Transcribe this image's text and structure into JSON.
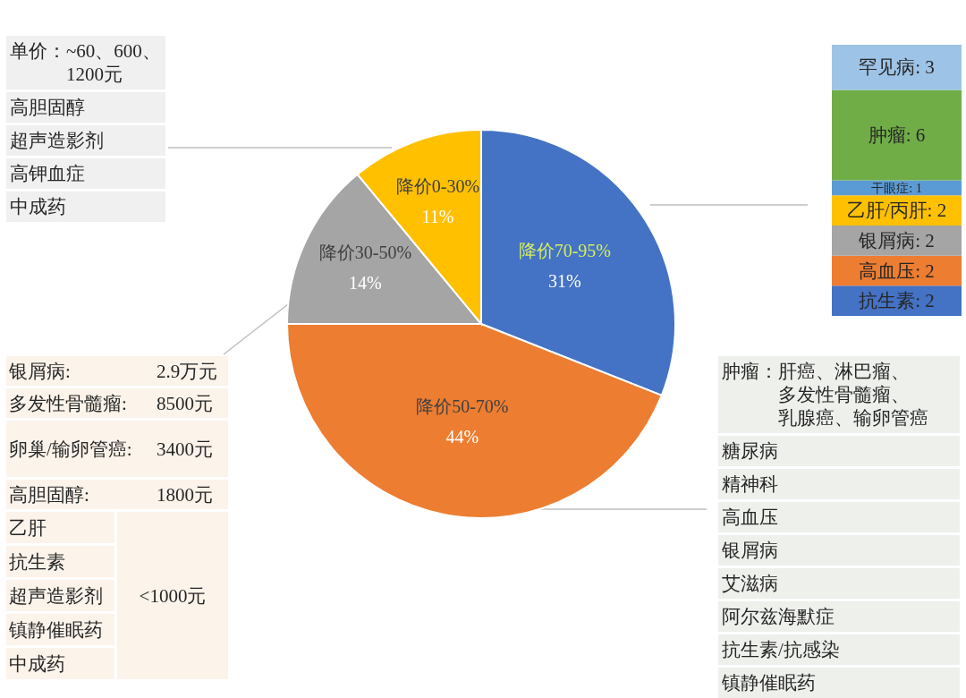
{
  "chart_data": [
    {
      "type": "pie",
      "categories": [
        "降价70-95%",
        "降价50-70%",
        "降价30-50%",
        "降价0-30%"
      ],
      "values": [
        31,
        44,
        14,
        11
      ],
      "colors": [
        "#4472c4",
        "#ed7d31",
        "#a5a5a5",
        "#ffc000"
      ],
      "value_labels": [
        "31%",
        "44%",
        "14%",
        "11%"
      ]
    },
    {
      "type": "bar",
      "stacked": true,
      "categories": [
        null
      ],
      "series": [
        {
          "color": "#4472c4",
          "values": [
            2
          ],
          "value_labels": [
            "抗生素: 2"
          ]
        },
        {
          "color": "#ed7d31",
          "values": [
            2
          ],
          "value_labels": [
            "高血压: 2"
          ]
        },
        {
          "color": "#a5a5a5",
          "values": [
            2
          ],
          "value_labels": [
            "银屑病: 2"
          ]
        },
        {
          "color": "#ffc000",
          "values": [
            2
          ],
          "value_labels": [
            "乙肝/丙肝: 2"
          ]
        },
        {
          "color": "#5b9bd5",
          "values": [
            1
          ],
          "value_labels": [
            "干眼症: 1"
          ]
        },
        {
          "color": "#70ad47",
          "values": [
            6
          ],
          "value_labels": [
            "肿瘤: 6"
          ]
        },
        {
          "color": "#9dc3e6",
          "values": [
            3
          ],
          "value_labels": [
            "罕见病: 3"
          ]
        }
      ]
    },
    {
      "type": "other",
      "annotations": [
        "单价：~60、600、1200元",
        "高胆固醇",
        "超声造影剂",
        "高钾血症",
        "中成药"
      ]
    },
    {
      "type": "other",
      "annotations": [
        "银屑病:",
        "2.9万元",
        "多发性骨髓瘤:",
        "8500元",
        "卵巢/输卵管癌:",
        "3400元",
        "高胆固醇:",
        "1800元",
        "乙肝",
        "抗生素",
        "超声造影剂",
        "镇静催眠药",
        "中成药",
        "<1000元"
      ]
    },
    {
      "type": "other",
      "annotations": [
        "肿瘤：肝癌、淋巴瘤、多发性骨髓瘤、乳腺癌、输卵管癌",
        "糖尿病",
        "精神科",
        "高血压",
        "银屑病",
        "艾滋病",
        "阿尔兹海默症",
        "抗生素/抗感染",
        "镇静催眠药"
      ]
    }
  ]
}
